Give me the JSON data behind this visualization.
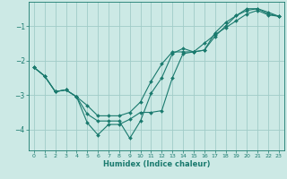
{
  "xlabel": "Humidex (Indice chaleur)",
  "bg_color": "#cce9e5",
  "grid_color": "#a0ccc8",
  "line_color": "#1a7a6e",
  "xlim": [
    -0.5,
    23.5
  ],
  "ylim": [
    -4.6,
    -0.3
  ],
  "yticks": [
    -4,
    -3,
    -2,
    -1
  ],
  "xticks": [
    0,
    1,
    2,
    3,
    4,
    5,
    6,
    7,
    8,
    9,
    10,
    11,
    12,
    13,
    14,
    15,
    16,
    17,
    18,
    19,
    20,
    21,
    22,
    23
  ],
  "line1_x": [
    0,
    1,
    2,
    3,
    4,
    5,
    6,
    7,
    8,
    9,
    10,
    11,
    12,
    13,
    14,
    15,
    16,
    17,
    18,
    19,
    20,
    21,
    22,
    23
  ],
  "line1_y": [
    -2.2,
    -2.45,
    -2.9,
    -2.85,
    -3.05,
    -3.55,
    -3.75,
    -3.75,
    -3.75,
    -4.25,
    -3.75,
    -2.95,
    -2.5,
    -1.8,
    -1.65,
    -1.75,
    -1.7,
    -1.2,
    -0.9,
    -0.7,
    -0.55,
    -0.5,
    -0.65,
    -0.72
  ],
  "line2_x": [
    0,
    1,
    2,
    3,
    4,
    5,
    6,
    7,
    8,
    9,
    10,
    11,
    12,
    13,
    14,
    15,
    16,
    17,
    18,
    19,
    20,
    21,
    22,
    23
  ],
  "line2_y": [
    -2.2,
    -2.45,
    -2.9,
    -2.85,
    -3.05,
    -3.3,
    -3.6,
    -3.6,
    -3.6,
    -3.5,
    -3.2,
    -2.6,
    -2.1,
    -1.75,
    -1.75,
    -1.75,
    -1.5,
    -1.25,
    -1.05,
    -0.85,
    -0.65,
    -0.55,
    -0.68,
    -0.72
  ],
  "line3_x": [
    0,
    1,
    2,
    3,
    4,
    5,
    6,
    7,
    8,
    9,
    10,
    11,
    12,
    13,
    14,
    15,
    16,
    17,
    18,
    19,
    20,
    21,
    22,
    23
  ],
  "line3_y": [
    -2.2,
    -2.45,
    -2.9,
    -2.85,
    -3.05,
    -3.8,
    -4.15,
    -3.85,
    -3.85,
    -3.7,
    -3.5,
    -3.5,
    -3.45,
    -2.5,
    -1.8,
    -1.75,
    -1.7,
    -1.3,
    -1.0,
    -0.7,
    -0.5,
    -0.5,
    -0.6,
    -0.72
  ]
}
